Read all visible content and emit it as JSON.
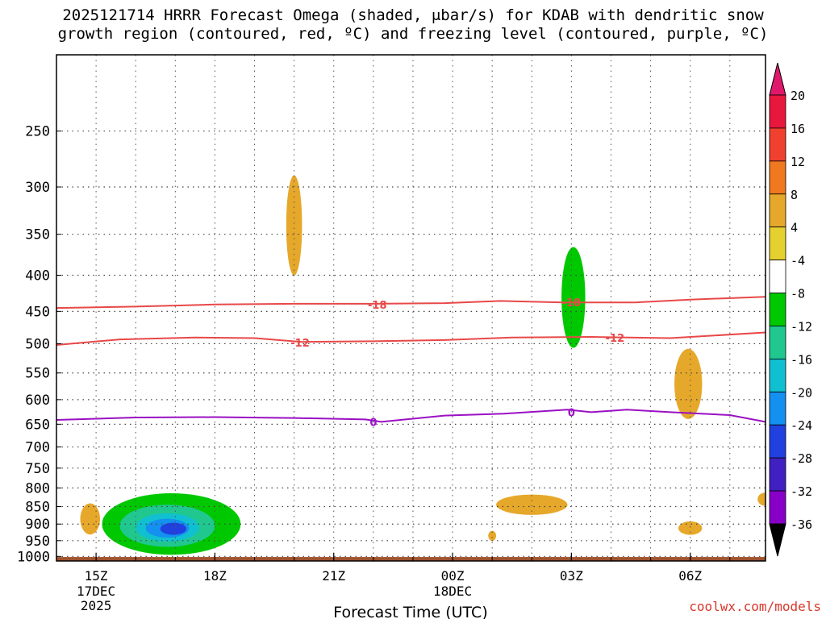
{
  "title_lines": [
    "2025121714 HRRR Forecast Omega (shaded, μbar/s) for KDAB with dendritic snow",
    "growth region (contoured, red, ºC) and freezing level (contoured, purple, ºC)"
  ],
  "credit": "coolwx.com/models",
  "chart_data": {
    "type": "heatmap",
    "xlabel": "Forecast Time (UTC)",
    "ylabel": "",
    "x_ticks": [
      {
        "hour": 15,
        "label": "15Z",
        "sub": [
          "17DEC",
          "2025"
        ]
      },
      {
        "hour": 18,
        "label": "18Z",
        "sub": []
      },
      {
        "hour": 21,
        "label": "21Z",
        "sub": []
      },
      {
        "hour": 24,
        "label": "00Z",
        "sub": [
          "18DEC"
        ]
      },
      {
        "hour": 27,
        "label": "03Z",
        "sub": []
      },
      {
        "hour": 30,
        "label": "06Z",
        "sub": []
      }
    ],
    "xlim_hours": [
      14,
      31.9
    ],
    "y_pressure_ticks": [
      250,
      300,
      350,
      400,
      450,
      500,
      550,
      600,
      650,
      700,
      750,
      800,
      850,
      900,
      950,
      1000
    ],
    "ylim_pressure": [
      1015,
      195
    ],
    "y_scale": "log-pressure",
    "grid": true,
    "colorbar": {
      "levels": [
        20,
        16,
        12,
        8,
        4,
        -4,
        -8,
        -12,
        -16,
        -20,
        -24,
        -28,
        -32,
        -36
      ],
      "colors": [
        "#e8173c",
        "#f04030",
        "#f0781e",
        "#e6a82a",
        "#e6d030",
        "#ffffff",
        "#00c800",
        "#20c890",
        "#10c0d0",
        "#1490f0",
        "#2040e0",
        "#4020c0",
        "#8800c8",
        "#a0a0a0"
      ],
      "top_arrow_color": "#e0186c",
      "bottom_arrow_color": "#000000"
    },
    "omega_regions": [
      {
        "t": 14.85,
        "p": 885,
        "dt": 0.25,
        "dp": 45,
        "value": 6
      },
      {
        "t": 16.9,
        "p": 900,
        "dt": 1.75,
        "dp": 90,
        "value": -8
      },
      {
        "t": 16.8,
        "p": 905,
        "dt": 1.2,
        "dp": 62,
        "value": -12
      },
      {
        "t": 16.8,
        "p": 910,
        "dt": 0.8,
        "dp": 42,
        "value": -18
      },
      {
        "t": 16.8,
        "p": 912,
        "dt": 0.55,
        "dp": 28,
        "value": -22
      },
      {
        "t": 16.95,
        "p": 914,
        "dt": 0.33,
        "dp": 18,
        "value": -26
      },
      {
        "t": 18.8,
        "p": 440,
        "dt": 0.55,
        "dp": 75,
        "value": -6
      },
      {
        "t": 18.1,
        "p": 510,
        "dt": 0.95,
        "dp": 65,
        "value": -6
      },
      {
        "t": 20.0,
        "p": 340,
        "dt": 0.2,
        "dp": 55,
        "value": 6
      },
      {
        "t": 20.55,
        "p": 605,
        "dt": 0.7,
        "dp": 45,
        "value": -6
      },
      {
        "t": 21.55,
        "p": 470,
        "dt": 1.1,
        "dp": 135,
        "value": -6
      },
      {
        "t": 22.15,
        "p": 560,
        "dt": 1.0,
        "dp": 75,
        "value": -6
      },
      {
        "t": 23.0,
        "p": 420,
        "dt": 0.45,
        "dp": 70,
        "value": -6
      },
      {
        "t": 24.0,
        "p": 525,
        "dt": 0.3,
        "dp": 70,
        "value": -6
      },
      {
        "t": 21.0,
        "p": 940,
        "dt": 0.8,
        "dp": 30,
        "value": -6
      },
      {
        "t": 23.6,
        "p": 935,
        "dt": 0.45,
        "dp": 25,
        "value": -6
      },
      {
        "t": 25.0,
        "p": 935,
        "dt": 0.1,
        "dp": 15,
        "value": 6
      },
      {
        "t": 27.0,
        "p": 450,
        "dt": 1.2,
        "dp": 150,
        "value": -6
      },
      {
        "t": 27.05,
        "p": 430,
        "dt": 0.3,
        "dp": 70,
        "value": -10
      },
      {
        "t": 26.0,
        "p": 845,
        "dt": 0.9,
        "dp": 28,
        "value": 6
      },
      {
        "t": 29.95,
        "p": 570,
        "dt": 0.35,
        "dp": 65,
        "value": 6
      },
      {
        "t": 30.0,
        "p": 912,
        "dt": 0.3,
        "dp": 20,
        "value": 6
      },
      {
        "t": 31.8,
        "p": 650,
        "dt": 0.45,
        "dp": 95,
        "value": -6
      },
      {
        "t": 31.9,
        "p": 830,
        "dt": 0.2,
        "dp": 18,
        "value": 6
      },
      {
        "t": 31.9,
        "p": 960,
        "dt": 0.2,
        "dp": 14,
        "value": -6
      }
    ],
    "contours": [
      {
        "name": "-18",
        "color": "#e84848",
        "width": 2,
        "points": [
          [
            14.0,
            445
          ],
          [
            16.0,
            443
          ],
          [
            18.0,
            440
          ],
          [
            20.0,
            439
          ],
          [
            22.0,
            439
          ],
          [
            23.8,
            438
          ],
          [
            25.2,
            435
          ],
          [
            26.8,
            437
          ],
          [
            28.6,
            437
          ],
          [
            30.0,
            433
          ],
          [
            31.9,
            429
          ]
        ],
        "labels": [
          {
            "t": 22.1,
            "p": 440
          },
          {
            "t": 27.0,
            "p": 437
          }
        ]
      },
      {
        "name": "-12",
        "color": "#e84848",
        "width": 2,
        "points": [
          [
            14.0,
            502
          ],
          [
            15.6,
            493
          ],
          [
            17.5,
            490
          ],
          [
            19.0,
            491
          ],
          [
            20.2,
            497
          ],
          [
            22.0,
            496
          ],
          [
            23.8,
            494
          ],
          [
            25.5,
            490
          ],
          [
            27.5,
            489
          ],
          [
            29.5,
            491
          ],
          [
            31.9,
            482
          ]
        ],
        "labels": [
          {
            "t": 20.15,
            "p": 498
          },
          {
            "t": 28.1,
            "p": 490
          }
        ]
      },
      {
        "name": "0",
        "color": "#9a10c4",
        "width": 2,
        "points": [
          [
            14.0,
            641
          ],
          [
            16.0,
            636
          ],
          [
            18.0,
            635
          ],
          [
            20.0,
            637
          ],
          [
            21.8,
            640
          ],
          [
            22.2,
            645
          ],
          [
            23.8,
            632
          ],
          [
            25.3,
            628
          ],
          [
            26.9,
            620
          ],
          [
            27.5,
            625
          ],
          [
            28.4,
            620
          ],
          [
            29.5,
            625
          ],
          [
            31.0,
            631
          ],
          [
            31.9,
            645
          ]
        ],
        "labels": [
          {
            "t": 22.0,
            "p": 645
          },
          {
            "t": 27.0,
            "p": 625
          }
        ]
      }
    ]
  }
}
